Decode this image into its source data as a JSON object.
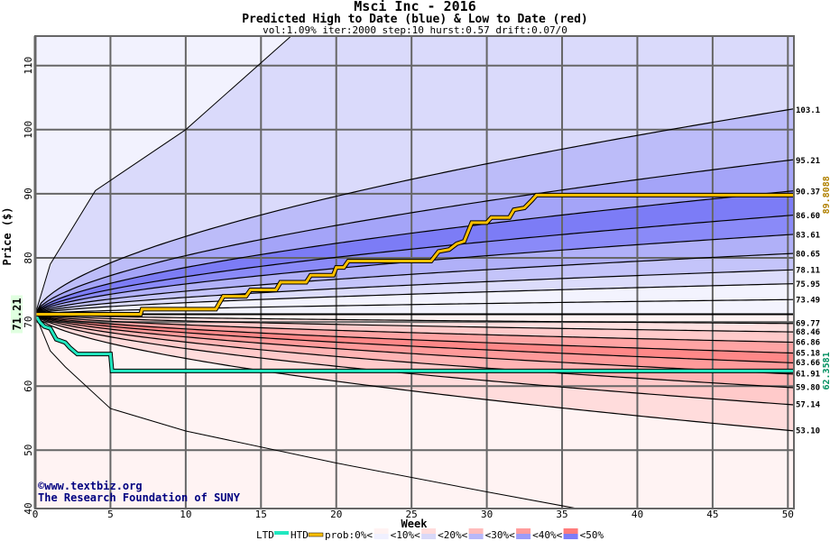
{
  "chart_data": {
    "type": "area",
    "title": "Msci Inc - 2016",
    "subtitle": "Predicted High to Date (blue) &  Low to Date (red)",
    "params": "vol:1.09% iter:2000 step:10 hurst:0.57 drift:0.07/0",
    "xlabel": "Week",
    "ylabel": "Price ($)",
    "xlim": [
      0,
      50.4
    ],
    "ylim": [
      40.9,
      114.6
    ],
    "xticks": [
      "0",
      "5",
      "10",
      "15",
      "20",
      "25",
      "30",
      "35",
      "40",
      "45",
      "50"
    ],
    "yticks": [
      "40",
      "50",
      "60",
      "70",
      "80",
      "90",
      "100",
      "110"
    ],
    "grid": true,
    "start_price": "71.21",
    "high_percentile_end_values": [
      "103.1",
      "95.21",
      "90.37",
      "86.60",
      "83.61",
      "80.65",
      "78.11",
      "75.95",
      "73.49"
    ],
    "low_percentile_end_values": [
      "69.77",
      "68.46",
      "66.86",
      "65.18",
      "63.66",
      "61.91",
      "59.80",
      "57.14",
      "53.10"
    ],
    "max_envelope": [
      [
        0,
        71.21
      ],
      [
        1,
        79
      ],
      [
        4,
        90.5
      ],
      [
        10,
        100
      ],
      [
        17,
        114.6
      ]
    ],
    "min_envelope": [
      [
        0,
        71.21
      ],
      [
        1,
        65.5
      ],
      [
        2,
        63
      ],
      [
        5,
        56.5
      ],
      [
        10,
        53
      ],
      [
        20,
        48
      ],
      [
        30,
        43.5
      ],
      [
        36,
        40.9
      ]
    ],
    "htd_series": {
      "name": "HTD",
      "color": "#ffc000",
      "points": [
        [
          0,
          71.21
        ],
        [
          7,
          71.21
        ],
        [
          7.1,
          72.0
        ],
        [
          12,
          72.0
        ],
        [
          12.5,
          74.0
        ],
        [
          14,
          74.0
        ],
        [
          14.3,
          75.0
        ],
        [
          16,
          75.0
        ],
        [
          16.3,
          76.2
        ],
        [
          18,
          76.2
        ],
        [
          18.3,
          77.3
        ],
        [
          19.8,
          77.3
        ],
        [
          20,
          78.5
        ],
        [
          20.5,
          78.5
        ],
        [
          20.8,
          79.5
        ],
        [
          26.3,
          79.5
        ],
        [
          26.8,
          81.0
        ],
        [
          27.5,
          81.3
        ],
        [
          28,
          82.2
        ],
        [
          28.5,
          82.6
        ],
        [
          29,
          85.5
        ],
        [
          30,
          85.5
        ],
        [
          30.3,
          86.3
        ],
        [
          31.5,
          86.3
        ],
        [
          31.8,
          87.5
        ],
        [
          32.5,
          87.8
        ],
        [
          33,
          89.0
        ],
        [
          33.3,
          89.8
        ],
        [
          50.4,
          89.8
        ]
      ]
    },
    "ltd_series": {
      "name": "LTD",
      "color": "#20e8c0",
      "points": [
        [
          0,
          71.21
        ],
        [
          0.3,
          70
        ],
        [
          0.6,
          69.3
        ],
        [
          1,
          69
        ],
        [
          1.4,
          67.3
        ],
        [
          2,
          66.8
        ],
        [
          2.3,
          66
        ],
        [
          2.8,
          65
        ],
        [
          5,
          65
        ],
        [
          5.1,
          62.36
        ],
        [
          50.4,
          62.36
        ]
      ]
    },
    "final_htd": "89.8088",
    "final_ltd": "62.3581",
    "legend": {
      "ltd": "LTD",
      "htd": "HTD",
      "prob": [
        "prob:0%<",
        "<10%<",
        "<20%<",
        "<30%<",
        "<40%<",
        "<50%"
      ]
    },
    "colors": {
      "blue_bands": [
        "#f3f3fe",
        "#f3f3fe",
        "#dcdcfb",
        "#c4c4fa",
        "#b0b0f8",
        "#8a8af8",
        "#7c7cf6",
        "#a4a4f8",
        "#bcbcf9",
        "#dadafb",
        "#f2f2fe"
      ],
      "red_bands": [
        "#fff3f3",
        "#ffe0e0",
        "#ffcaca",
        "#ffa4a4",
        "#ff8888",
        "#ff9a9a",
        "#ffb4b4",
        "#ffcaca",
        "#ffdcdc",
        "#fff3f3"
      ],
      "legend_red": [
        "#fff2f2",
        "#ffdcdc",
        "#ffbcbc",
        "#ff9c9c",
        "#ff7c7c"
      ],
      "legend_blue": [
        "#f0f0ff",
        "#d8d8f8",
        "#b8b8f8",
        "#9c9cf8",
        "#7c7cf8"
      ]
    },
    "watermark": [
      "©www.textbiz.org",
      "The Research Foundation of SUNY"
    ]
  }
}
